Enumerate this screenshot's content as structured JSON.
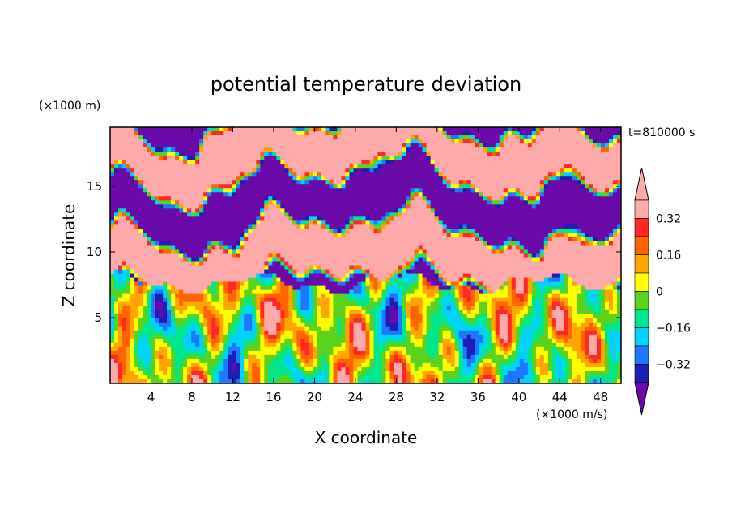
{
  "chart_data": {
    "type": "heatmap",
    "title": "potential temperature deviation",
    "xlabel": "X coordinate",
    "ylabel": "Z coordinate",
    "x_unit": "(×1000 m/s)",
    "y_unit": "(×1000 m)",
    "time_label": "t=810000 s",
    "xlim": [
      0,
      50
    ],
    "ylim": [
      0,
      19.5
    ],
    "x_ticks": [
      4,
      8,
      12,
      16,
      20,
      24,
      28,
      32,
      36,
      40,
      44,
      48
    ],
    "y_ticks": [
      5,
      10,
      15
    ],
    "colorbar": {
      "levels": [
        -0.4,
        -0.32,
        -0.24,
        -0.16,
        -0.08,
        0,
        0.08,
        0.16,
        0.24,
        0.32,
        0.4
      ],
      "tick_labels": [
        "0.32",
        "0.16",
        "0",
        "−0.16",
        "−0.32"
      ],
      "tick_values": [
        0.32,
        0.16,
        0,
        -0.16,
        -0.32
      ],
      "colors": [
        "#6a0aa8",
        "#1e1eb4",
        "#1e78ff",
        "#00d2ff",
        "#00e68c",
        "#5ad21e",
        "#ffff00",
        "#ffa500",
        "#ff6400",
        "#ff2828",
        "#ffaaaa"
      ],
      "extend": "both"
    },
    "field_description_regions": [
      {
        "z_range": [
          0,
          7
        ],
        "pattern": "turbulent mixed layer with values ranging about -0.4 to 0.32"
      },
      {
        "z_range": [
          7,
          19.5
        ],
        "pattern": "stratified alternating layers of about -0.4 (purple) and above 0.4 (pink)"
      }
    ]
  }
}
